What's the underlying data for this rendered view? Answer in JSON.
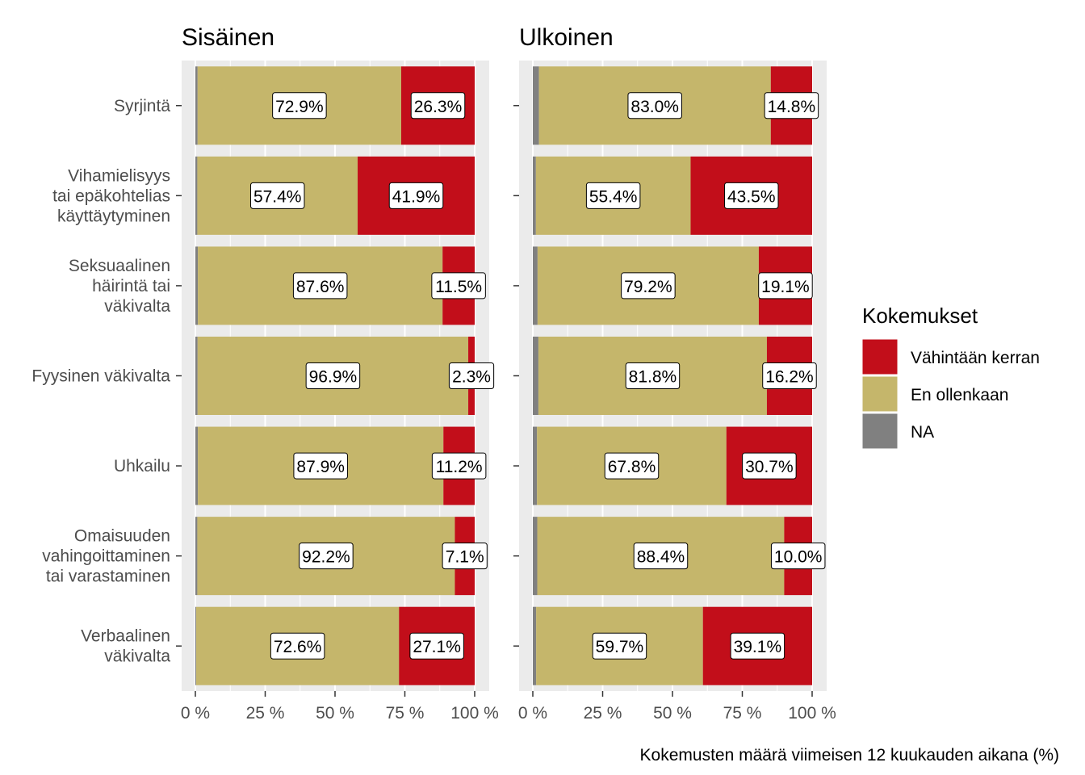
{
  "chart_data": {
    "type": "bar",
    "orientation": "horizontal",
    "stacked": true,
    "xlabel": "Kokemusten määrä viimeisen 12 kuukauden aikana (%)",
    "xlim": [
      0,
      100
    ],
    "x_ticks": [
      "0 %",
      "25 %",
      "50 %",
      "75 %",
      "100 %"
    ],
    "categories": [
      [
        "Syrjintä"
      ],
      [
        "Vihamielisyys",
        "tai epäkohtelias",
        "käyttäytyminen"
      ],
      [
        "Seksuaalinen",
        "häirintä tai",
        "väkivalta"
      ],
      [
        "Fyysinen väkivalta"
      ],
      [
        "Uhkailu"
      ],
      [
        "Omaisuuden",
        "vahingoittaminen",
        "tai varastaminen"
      ],
      [
        "Verbaalinen",
        "väkivalta"
      ]
    ],
    "legend": {
      "title": "Kokemukset",
      "position": "right",
      "entries": [
        {
          "label": "Vähintään kerran",
          "color": "#C20E1A"
        },
        {
          "label": "En ollenkaan",
          "color": "#C5B66B"
        },
        {
          "label": "NA",
          "color": "#808080"
        }
      ]
    },
    "colors": {
      "na": "#808080",
      "never": "#C5B66B",
      "once": "#C20E1A",
      "panel_bg": "#EBEBEB",
      "grid": "#FFFFFF"
    },
    "panels": [
      {
        "title": "Sisäinen",
        "series": [
          {
            "name": "NA",
            "values": [
              0.8,
              0.7,
              0.9,
              0.8,
              0.9,
              0.7,
              0.3
            ]
          },
          {
            "name": "En ollenkaan",
            "values": [
              72.9,
              57.4,
              87.6,
              96.9,
              87.9,
              92.2,
              72.6
            ]
          },
          {
            "name": "Vähintään kerran",
            "values": [
              26.3,
              41.9,
              11.5,
              2.3,
              11.2,
              7.1,
              27.1
            ]
          }
        ],
        "labels": {
          "never": [
            "72.9%",
            "57.4%",
            "87.6%",
            "96.9%",
            "87.9%",
            "92.2%",
            "72.6%"
          ],
          "once": [
            "26.3%",
            "41.9%",
            "11.5%",
            "2.3%",
            "11.2%",
            "7.1%",
            "27.1%"
          ]
        }
      },
      {
        "title": "Ulkoinen",
        "series": [
          {
            "name": "NA",
            "values": [
              2.2,
              1.1,
              1.7,
              2.0,
              1.5,
              1.6,
              1.2
            ]
          },
          {
            "name": "En ollenkaan",
            "values": [
              83.0,
              55.4,
              79.2,
              81.8,
              67.8,
              88.4,
              59.7
            ]
          },
          {
            "name": "Vähintään kerran",
            "values": [
              14.8,
              43.5,
              19.1,
              16.2,
              30.7,
              10.0,
              39.1
            ]
          }
        ],
        "labels": {
          "never": [
            "83.0%",
            "55.4%",
            "79.2%",
            "81.8%",
            "67.8%",
            "88.4%",
            "59.7%"
          ],
          "once": [
            "14.8%",
            "43.5%",
            "19.1%",
            "16.2%",
            "30.7%",
            "10.0%",
            "39.1%"
          ]
        }
      }
    ]
  }
}
